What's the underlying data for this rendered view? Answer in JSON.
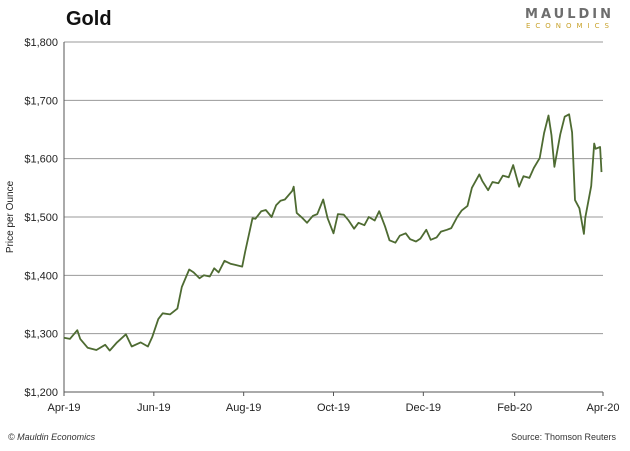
{
  "header": {
    "title": "Gold"
  },
  "logo": {
    "main": "MAULDIN",
    "sub": "ECONOMICS"
  },
  "footer": {
    "left": "© Mauldin Economics",
    "right": "Source: Thomson Reuters"
  },
  "colors": {
    "line": "#4e6b32",
    "grid": "#9a9a9a",
    "axis": "#555555",
    "logo_gold": "#c9a32c"
  },
  "chart_data": {
    "type": "line",
    "title": "Gold",
    "ylabel": "Price per Ounce",
    "xlabel": "",
    "ylim": [
      1200,
      1800
    ],
    "xlim": [
      "2019-04-01",
      "2020-04-01"
    ],
    "y_ticks": [
      "$1,200",
      "$1,300",
      "$1,400",
      "$1,500",
      "$1,600",
      "$1,700",
      "$1,800"
    ],
    "y_tick_values": [
      1200,
      1300,
      1400,
      1500,
      1600,
      1700,
      1800
    ],
    "x_ticks": [
      "Apr-19",
      "Jun-19",
      "Aug-19",
      "Oct-19",
      "Dec-19",
      "Feb-20",
      "Apr-20"
    ],
    "x_tick_dates": [
      "2019-04-01",
      "2019-06-01",
      "2019-08-01",
      "2019-10-01",
      "2019-12-01",
      "2020-02-01",
      "2020-04-01"
    ],
    "grid": true,
    "series": [
      {
        "points": [
          [
            "2019-04-01",
            1293
          ],
          [
            "2019-04-05",
            1291
          ],
          [
            "2019-04-10",
            1306
          ],
          [
            "2019-04-12",
            1291
          ],
          [
            "2019-04-17",
            1276
          ],
          [
            "2019-04-23",
            1272
          ],
          [
            "2019-04-29",
            1281
          ],
          [
            "2019-05-02",
            1271
          ],
          [
            "2019-05-07",
            1285
          ],
          [
            "2019-05-13",
            1299
          ],
          [
            "2019-05-17",
            1278
          ],
          [
            "2019-05-23",
            1285
          ],
          [
            "2019-05-28",
            1278
          ],
          [
            "2019-05-31",
            1295
          ],
          [
            "2019-06-04",
            1325
          ],
          [
            "2019-06-07",
            1335
          ],
          [
            "2019-06-12",
            1333
          ],
          [
            "2019-06-17",
            1343
          ],
          [
            "2019-06-20",
            1380
          ],
          [
            "2019-06-25",
            1410
          ],
          [
            "2019-06-28",
            1405
          ],
          [
            "2019-07-02",
            1395
          ],
          [
            "2019-07-05",
            1400
          ],
          [
            "2019-07-09",
            1398
          ],
          [
            "2019-07-12",
            1412
          ],
          [
            "2019-07-15",
            1405
          ],
          [
            "2019-07-19",
            1425
          ],
          [
            "2019-07-23",
            1420
          ],
          [
            "2019-07-26",
            1418
          ],
          [
            "2019-07-31",
            1415
          ],
          [
            "2019-08-02",
            1440
          ],
          [
            "2019-08-07",
            1498
          ],
          [
            "2019-08-09",
            1497
          ],
          [
            "2019-08-13",
            1510
          ],
          [
            "2019-08-16",
            1512
          ],
          [
            "2019-08-20",
            1500
          ],
          [
            "2019-08-23",
            1520
          ],
          [
            "2019-08-26",
            1528
          ],
          [
            "2019-08-29",
            1530
          ],
          [
            "2019-09-03",
            1545
          ],
          [
            "2019-09-04",
            1552
          ],
          [
            "2019-09-06",
            1507
          ],
          [
            "2019-09-10",
            1498
          ],
          [
            "2019-09-13",
            1490
          ],
          [
            "2019-09-17",
            1502
          ],
          [
            "2019-09-20",
            1505
          ],
          [
            "2019-09-24",
            1530
          ],
          [
            "2019-09-27",
            1498
          ],
          [
            "2019-10-01",
            1472
          ],
          [
            "2019-10-04",
            1505
          ],
          [
            "2019-10-08",
            1504
          ],
          [
            "2019-10-11",
            1495
          ],
          [
            "2019-10-15",
            1480
          ],
          [
            "2019-10-18",
            1490
          ],
          [
            "2019-10-22",
            1486
          ],
          [
            "2019-10-25",
            1500
          ],
          [
            "2019-10-29",
            1494
          ],
          [
            "2019-11-01",
            1510
          ],
          [
            "2019-11-05",
            1484
          ],
          [
            "2019-11-08",
            1460
          ],
          [
            "2019-11-12",
            1456
          ],
          [
            "2019-11-15",
            1468
          ],
          [
            "2019-11-19",
            1472
          ],
          [
            "2019-11-22",
            1462
          ],
          [
            "2019-11-26",
            1458
          ],
          [
            "2019-11-29",
            1463
          ],
          [
            "2019-12-03",
            1478
          ],
          [
            "2019-12-06",
            1461
          ],
          [
            "2019-12-10",
            1465
          ],
          [
            "2019-12-13",
            1475
          ],
          [
            "2019-12-17",
            1478
          ],
          [
            "2019-12-20",
            1481
          ],
          [
            "2019-12-24",
            1500
          ],
          [
            "2019-12-27",
            1511
          ],
          [
            "2019-12-31",
            1519
          ],
          [
            "2020-01-03",
            1550
          ],
          [
            "2020-01-08",
            1573
          ],
          [
            "2020-01-10",
            1562
          ],
          [
            "2020-01-14",
            1546
          ],
          [
            "2020-01-17",
            1560
          ],
          [
            "2020-01-21",
            1558
          ],
          [
            "2020-01-24",
            1571
          ],
          [
            "2020-01-28",
            1568
          ],
          [
            "2020-01-31",
            1589
          ],
          [
            "2020-02-04",
            1552
          ],
          [
            "2020-02-07",
            1570
          ],
          [
            "2020-02-11",
            1567
          ],
          [
            "2020-02-14",
            1584
          ],
          [
            "2020-02-18",
            1601
          ],
          [
            "2020-02-21",
            1644
          ],
          [
            "2020-02-24",
            1674
          ],
          [
            "2020-02-26",
            1640
          ],
          [
            "2020-02-28",
            1586
          ],
          [
            "2020-03-03",
            1642
          ],
          [
            "2020-03-06",
            1672
          ],
          [
            "2020-03-09",
            1676
          ],
          [
            "2020-03-11",
            1645
          ],
          [
            "2020-03-13",
            1529
          ],
          [
            "2020-03-16",
            1515
          ],
          [
            "2020-03-19",
            1471
          ],
          [
            "2020-03-20",
            1499
          ],
          [
            "2020-03-24",
            1553
          ],
          [
            "2020-03-26",
            1626
          ],
          [
            "2020-03-27",
            1617
          ],
          [
            "2020-03-30",
            1620
          ],
          [
            "2020-03-31",
            1577
          ]
        ]
      }
    ]
  }
}
